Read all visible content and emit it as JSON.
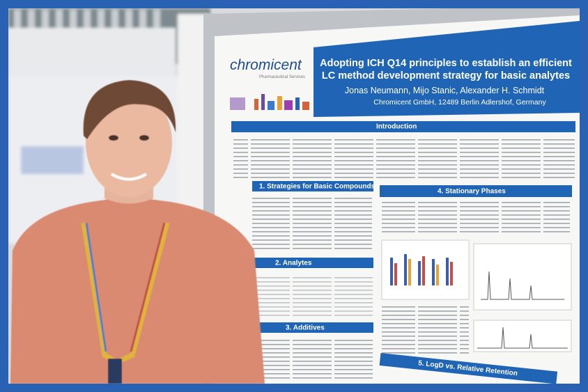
{
  "poster": {
    "logo": "chromicent",
    "logo_tagline": "Pharmaceutical Services",
    "title_lines": [
      "Adopting ICH Q14 principles to establish an efficient",
      "LC method development strategy for basic analytes"
    ],
    "authors": "Jonas Neumann, Mijo Stanic, Alexander H. Schmidt",
    "affiliation": "Chromicent GmbH, 12489 Berlin Adlershof, Germany",
    "sections": [
      "Introduction",
      "1. Strategies for Basic Compounds",
      "2. Analytes",
      "3. Additives",
      "4. Stationary Phases",
      "5. LogD vs. Relative Retention"
    ]
  }
}
